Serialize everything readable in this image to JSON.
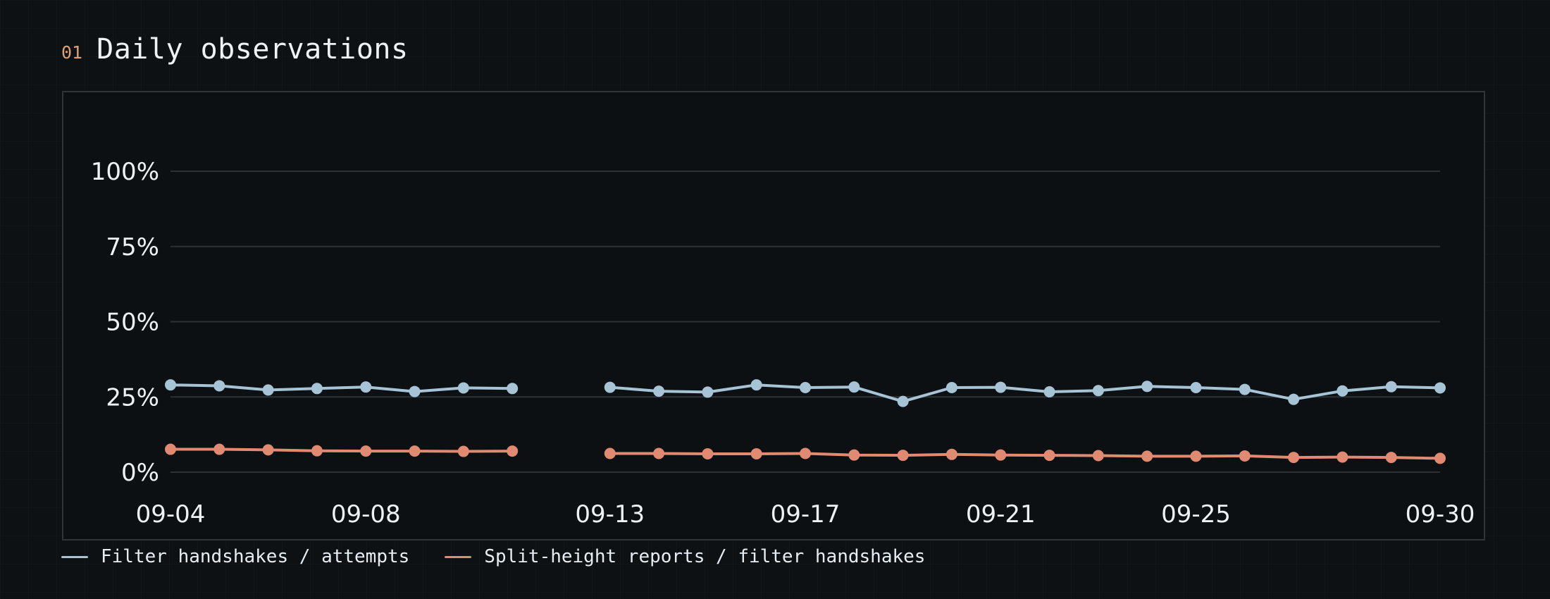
{
  "header": {
    "section_number": "01",
    "title": "Daily observations"
  },
  "colors": {
    "series_a": "#a6c4d6",
    "series_b": "#e08a72",
    "grid": "#2c3236",
    "axis_text": "#eef2f5",
    "accent": "#e0a070"
  },
  "chart_data": {
    "type": "line",
    "x": [
      "09-04",
      "09-05",
      "09-06",
      "09-07",
      "09-08",
      "09-09",
      "09-10",
      "09-11",
      "09-12",
      "09-13",
      "09-14",
      "09-15",
      "09-16",
      "09-17",
      "09-18",
      "09-19",
      "09-20",
      "09-21",
      "09-22",
      "09-23",
      "09-24",
      "09-25",
      "09-26",
      "09-27",
      "09-28",
      "09-29",
      "09-30"
    ],
    "x_tick_labels": [
      "09-04",
      "09-08",
      "09-13",
      "09-17",
      "09-21",
      "09-25",
      "09-30"
    ],
    "y_tick_labels": [
      "0%",
      "25%",
      "50%",
      "75%",
      "100%"
    ],
    "y_ticks": [
      0,
      25,
      50,
      75,
      100
    ],
    "ylim": [
      0,
      100
    ],
    "grid": true,
    "legend_position": "bottom-left",
    "series": [
      {
        "name": "Filter handshakes / attempts",
        "color": "#a6c4d6",
        "values": [
          29.0,
          28.7,
          27.3,
          27.8,
          28.3,
          26.8,
          28.0,
          27.8,
          null,
          28.2,
          26.9,
          26.6,
          29.0,
          28.1,
          28.3,
          23.5,
          28.1,
          28.2,
          26.7,
          27.1,
          28.5,
          28.1,
          27.5,
          24.2,
          27.0,
          28.4,
          28.0
        ]
      },
      {
        "name": "Split-height reports / filter handshakes",
        "color": "#e08a72",
        "values": [
          7.6,
          7.6,
          7.4,
          7.1,
          7.0,
          7.0,
          6.9,
          7.0,
          null,
          6.2,
          6.2,
          6.1,
          6.1,
          6.2,
          5.7,
          5.6,
          5.9,
          5.7,
          5.6,
          5.5,
          5.3,
          5.3,
          5.4,
          4.9,
          5.0,
          4.9,
          4.6
        ]
      }
    ]
  }
}
